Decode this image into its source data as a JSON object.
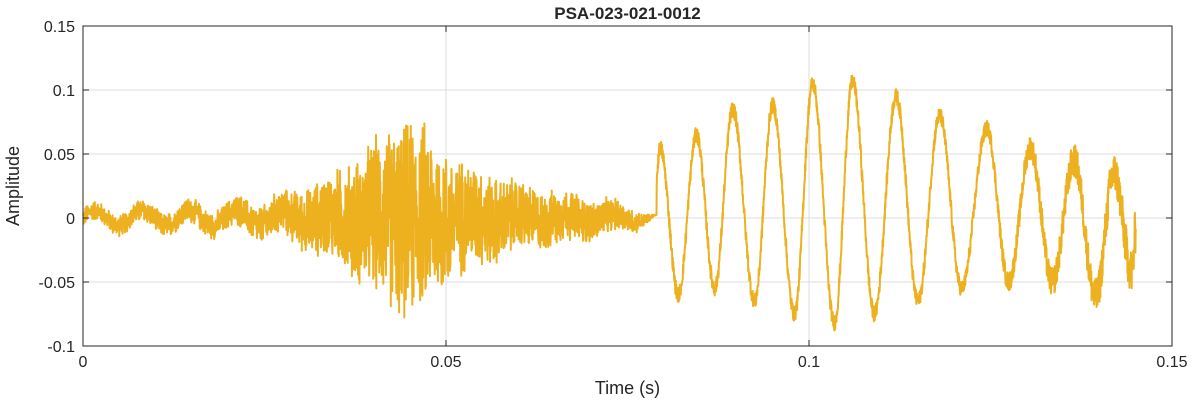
{
  "chart_data": {
    "type": "line",
    "title": "PSA-023-021-0012",
    "xlabel": "Time (s)",
    "ylabel": "Amplitude",
    "xlim": [
      0,
      0.15
    ],
    "ylim": [
      -0.1,
      0.15
    ],
    "xticks": [
      0,
      0.05,
      0.1,
      0.15
    ],
    "xtick_labels": [
      "0",
      "0.05",
      "0.1",
      "0.15"
    ],
    "yticks": [
      -0.1,
      -0.05,
      0,
      0.05,
      0.1,
      0.15
    ],
    "ytick_labels": [
      "-0.1",
      "-0.05",
      "0",
      "0.05",
      "0.1",
      "0.15"
    ],
    "grid": true,
    "series": [
      {
        "color": "#EDB120",
        "x_start": 0,
        "x_end": 0.145,
        "envelope": [
          {
            "t": 0.0,
            "amp": 0.008
          },
          {
            "t": 0.01,
            "amp": 0.01
          },
          {
            "t": 0.02,
            "amp": 0.012
          },
          {
            "t": 0.028,
            "amp": 0.02
          },
          {
            "t": 0.035,
            "amp": 0.04
          },
          {
            "t": 0.04,
            "amp": 0.065
          },
          {
            "t": 0.044,
            "amp": 0.085
          },
          {
            "t": 0.047,
            "amp": 0.08
          },
          {
            "t": 0.052,
            "amp": 0.05
          },
          {
            "t": 0.06,
            "amp": 0.03
          },
          {
            "t": 0.07,
            "amp": 0.018
          },
          {
            "t": 0.076,
            "amp": 0.01
          },
          {
            "t": 0.079,
            "amp": 0.0
          }
        ],
        "voiced_peaks": [
          {
            "t": 0.0795,
            "y": 0.055
          },
          {
            "t": 0.0845,
            "y": 0.065
          },
          {
            "t": 0.0895,
            "y": 0.085
          },
          {
            "t": 0.095,
            "y": 0.088
          },
          {
            "t": 0.1005,
            "y": 0.105
          },
          {
            "t": 0.106,
            "y": 0.107
          },
          {
            "t": 0.112,
            "y": 0.095
          },
          {
            "t": 0.118,
            "y": 0.08
          },
          {
            "t": 0.1245,
            "y": 0.07
          },
          {
            "t": 0.1305,
            "y": 0.055
          },
          {
            "t": 0.1365,
            "y": 0.045
          },
          {
            "t": 0.142,
            "y": 0.035
          }
        ],
        "voiced_troughs": [
          {
            "t": 0.082,
            "y": -0.06
          },
          {
            "t": 0.087,
            "y": -0.055
          },
          {
            "t": 0.0925,
            "y": -0.065
          },
          {
            "t": 0.098,
            "y": -0.075
          },
          {
            "t": 0.1035,
            "y": -0.082
          },
          {
            "t": 0.109,
            "y": -0.075
          },
          {
            "t": 0.115,
            "y": -0.065
          },
          {
            "t": 0.121,
            "y": -0.055
          },
          {
            "t": 0.1275,
            "y": -0.05
          },
          {
            "t": 0.1335,
            "y": -0.05
          },
          {
            "t": 0.1395,
            "y": -0.062
          },
          {
            "t": 0.1445,
            "y": -0.042
          }
        ]
      }
    ]
  }
}
